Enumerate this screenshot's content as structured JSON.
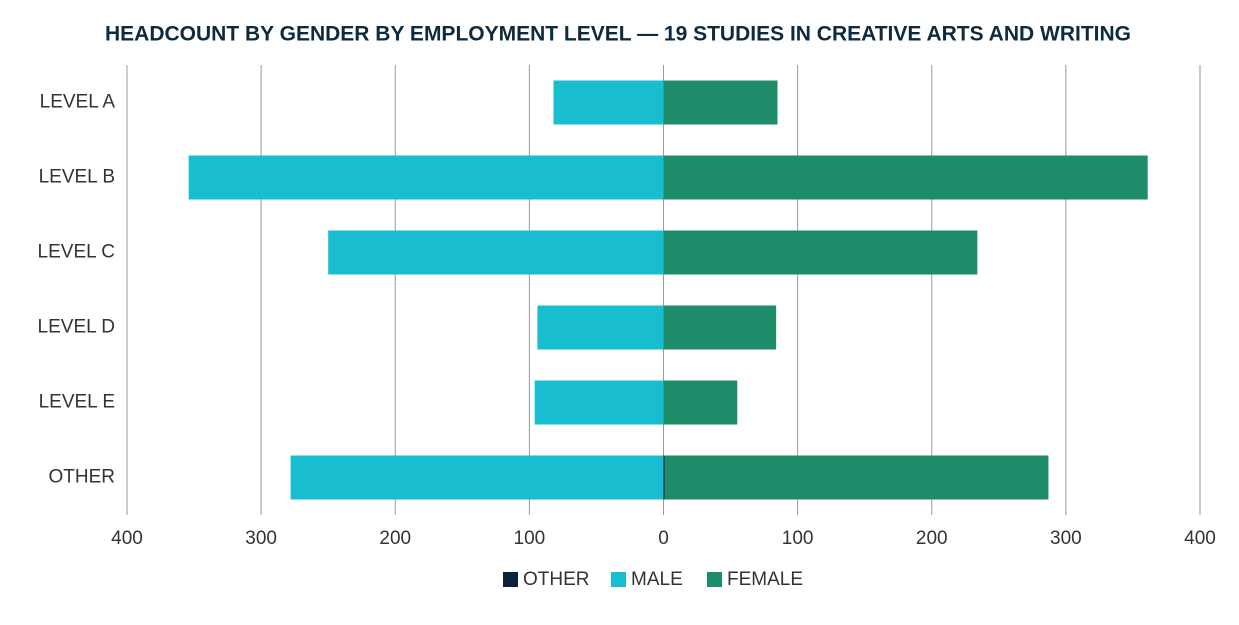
{
  "chart_data": {
    "type": "diverging-bar",
    "title": "HEADCOUNT BY GENDER BY EMPLOYMENT LEVEL — 19 STUDIES IN CREATIVE ARTS AND WRITING",
    "categories": [
      "LEVEL A",
      "LEVEL B",
      "LEVEL C",
      "LEVEL D",
      "LEVEL E",
      "OTHER"
    ],
    "series": [
      {
        "name": "OTHER",
        "color": "#0b2238",
        "values": [
          0,
          0,
          0,
          0,
          0,
          1
        ]
      },
      {
        "name": "MALE",
        "color": "#19bdd0",
        "values": [
          -82,
          -354,
          -250,
          -94,
          -96,
          -278
        ]
      },
      {
        "name": "FEMALE",
        "color": "#1e8c6a",
        "values": [
          85,
          361,
          234,
          84,
          55,
          286
        ]
      }
    ],
    "xlim": [
      -400,
      400
    ],
    "xticks": [
      {
        "value": -400,
        "label": "400"
      },
      {
        "value": -300,
        "label": "300"
      },
      {
        "value": -200,
        "label": "200"
      },
      {
        "value": -100,
        "label": "100"
      },
      0,
      100,
      200,
      300,
      400
    ],
    "grid": true,
    "legend": "bottom"
  }
}
